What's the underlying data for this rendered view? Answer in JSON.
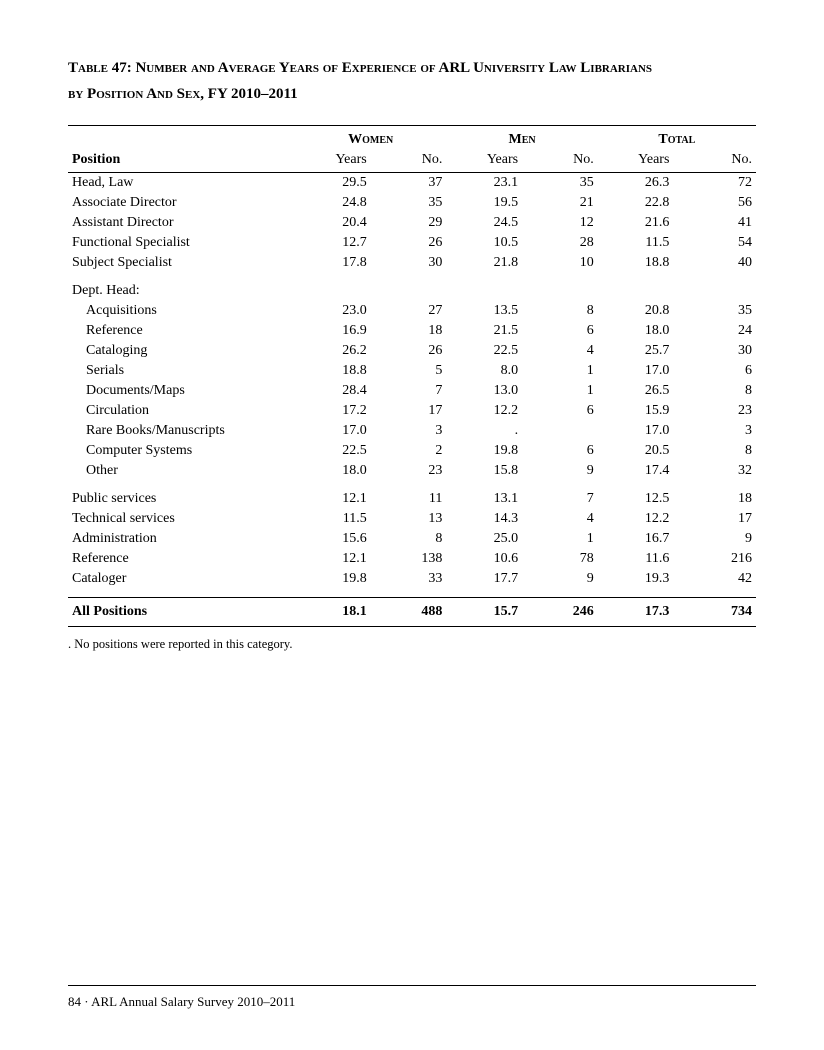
{
  "title_line1": "Table 47: Number and Average Years of Experience of ARL University Law Librarians",
  "title_line2": "by Position And Sex, FY 2010–2011",
  "headers": {
    "women": "Women",
    "men": "Men",
    "total": "Total",
    "position": "Position",
    "years": "Years",
    "no": "No."
  },
  "rows_top": [
    {
      "label": "Head, Law",
      "w_y": "29.5",
      "w_n": "37",
      "m_y": "23.1",
      "m_n": "35",
      "t_y": "26.3",
      "t_n": "72"
    },
    {
      "label": "Associate Director",
      "w_y": "24.8",
      "w_n": "35",
      "m_y": "19.5",
      "m_n": "21",
      "t_y": "22.8",
      "t_n": "56"
    },
    {
      "label": "Assistant Director",
      "w_y": "20.4",
      "w_n": "29",
      "m_y": "24.5",
      "m_n": "12",
      "t_y": "21.6",
      "t_n": "41"
    },
    {
      "label": "Functional Specialist",
      "w_y": "12.7",
      "w_n": "26",
      "m_y": "10.5",
      "m_n": "28",
      "t_y": "11.5",
      "t_n": "54"
    },
    {
      "label": "Subject Specialist",
      "w_y": "17.8",
      "w_n": "30",
      "m_y": "21.8",
      "m_n": "10",
      "t_y": "18.8",
      "t_n": "40"
    }
  ],
  "dept_head_label": "Dept. Head:",
  "rows_dept": [
    {
      "label": "Acquisitions",
      "w_y": "23.0",
      "w_n": "27",
      "m_y": "13.5",
      "m_n": "8",
      "t_y": "20.8",
      "t_n": "35"
    },
    {
      "label": "Reference",
      "w_y": "16.9",
      "w_n": "18",
      "m_y": "21.5",
      "m_n": "6",
      "t_y": "18.0",
      "t_n": "24"
    },
    {
      "label": "Cataloging",
      "w_y": "26.2",
      "w_n": "26",
      "m_y": "22.5",
      "m_n": "4",
      "t_y": "25.7",
      "t_n": "30"
    },
    {
      "label": "Serials",
      "w_y": "18.8",
      "w_n": "5",
      "m_y": "8.0",
      "m_n": "1",
      "t_y": "17.0",
      "t_n": "6"
    },
    {
      "label": "Documents/Maps",
      "w_y": "28.4",
      "w_n": "7",
      "m_y": "13.0",
      "m_n": "1",
      "t_y": "26.5",
      "t_n": "8"
    },
    {
      "label": "Circulation",
      "w_y": "17.2",
      "w_n": "17",
      "m_y": "12.2",
      "m_n": "6",
      "t_y": "15.9",
      "t_n": "23"
    },
    {
      "label": "Rare Books/Manuscripts",
      "w_y": "17.0",
      "w_n": "3",
      "m_y": ".",
      "m_n": "",
      "t_y": "17.0",
      "t_n": "3"
    },
    {
      "label": "Computer Systems",
      "w_y": "22.5",
      "w_n": "2",
      "m_y": "19.8",
      "m_n": "6",
      "t_y": "20.5",
      "t_n": "8"
    },
    {
      "label": "Other",
      "w_y": "18.0",
      "w_n": "23",
      "m_y": "15.8",
      "m_n": "9",
      "t_y": "17.4",
      "t_n": "32"
    }
  ],
  "rows_bottom": [
    {
      "label": "Public services",
      "w_y": "12.1",
      "w_n": "11",
      "m_y": "13.1",
      "m_n": "7",
      "t_y": "12.5",
      "t_n": "18"
    },
    {
      "label": "Technical services",
      "w_y": "11.5",
      "w_n": "13",
      "m_y": "14.3",
      "m_n": "4",
      "t_y": "12.2",
      "t_n": "17"
    },
    {
      "label": "Administration",
      "w_y": "15.6",
      "w_n": "8",
      "m_y": "25.0",
      "m_n": "1",
      "t_y": "16.7",
      "t_n": "9"
    },
    {
      "label": "Reference",
      "w_y": "12.1",
      "w_n": "138",
      "m_y": "10.6",
      "m_n": "78",
      "t_y": "11.6",
      "t_n": "216"
    },
    {
      "label": "Cataloger",
      "w_y": "19.8",
      "w_n": "33",
      "m_y": "17.7",
      "m_n": "9",
      "t_y": "19.3",
      "t_n": "42"
    }
  ],
  "total_row": {
    "label": "All Positions",
    "w_y": "18.1",
    "w_n": "488",
    "m_y": "15.7",
    "m_n": "246",
    "t_y": "17.3",
    "t_n": "734"
  },
  "footnote": ". No positions were reported in this category.",
  "footer": "84 · ARL Annual Salary Survey 2010–2011",
  "col_widths": [
    "33%",
    "11%",
    "11%",
    "11%",
    "11%",
    "11%",
    "12%"
  ]
}
